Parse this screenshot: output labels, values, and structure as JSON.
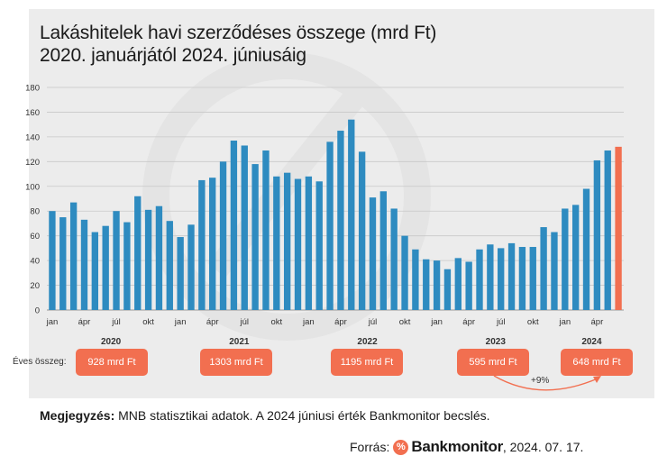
{
  "title_line1": "Lakáshitelek havi szerződéses összege (mrd Ft)",
  "title_line2": "2020. januárjától 2024. júniusáig",
  "chart_data": {
    "type": "bar",
    "title": "Lakáshitelek havi szerződéses összege (mrd Ft) 2020. januárjától 2024. júniusáig",
    "ylim": [
      0,
      180
    ],
    "yticks": [
      0,
      20,
      40,
      60,
      80,
      100,
      120,
      140,
      160,
      180
    ],
    "grid": true,
    "categories": [
      "2020-01",
      "2020-02",
      "2020-03",
      "2020-04",
      "2020-05",
      "2020-06",
      "2020-07",
      "2020-08",
      "2020-09",
      "2020-10",
      "2020-11",
      "2020-12",
      "2021-01",
      "2021-02",
      "2021-03",
      "2021-04",
      "2021-05",
      "2021-06",
      "2021-07",
      "2021-08",
      "2021-09",
      "2021-10",
      "2021-11",
      "2021-12",
      "2022-01",
      "2022-02",
      "2022-03",
      "2022-04",
      "2022-05",
      "2022-06",
      "2022-07",
      "2022-08",
      "2022-09",
      "2022-10",
      "2022-11",
      "2022-12",
      "2023-01",
      "2023-02",
      "2023-03",
      "2023-04",
      "2023-05",
      "2023-06",
      "2023-07",
      "2023-08",
      "2023-09",
      "2023-10",
      "2023-11",
      "2023-12",
      "2024-01",
      "2024-02",
      "2024-03",
      "2024-04",
      "2024-05",
      "2024-06"
    ],
    "values": [
      80,
      75,
      87,
      73,
      63,
      68,
      80,
      71,
      92,
      81,
      84,
      72,
      59,
      69,
      105,
      107,
      120,
      137,
      133,
      118,
      129,
      108,
      111,
      106,
      108,
      104,
      136,
      145,
      154,
      128,
      91,
      96,
      82,
      60,
      49,
      41,
      40,
      33,
      42,
      39,
      49,
      53,
      50,
      54,
      51,
      51,
      67,
      63,
      82,
      85,
      98,
      121,
      129,
      132
    ],
    "estimated_index": 53,
    "month_tick_labels": [
      "jan",
      "ápr",
      "júl",
      "okt"
    ],
    "year_labels": [
      "2020",
      "2021",
      "2022",
      "2023",
      "2024"
    ],
    "colors": {
      "bar": "#2e8bc0",
      "estimate": "#f26f50",
      "badge": "#f26f50",
      "grid": "#c8c8c8"
    }
  },
  "annual": {
    "label": "Éves összeg:",
    "values": [
      "928 mrd Ft",
      "1303 mrd Ft",
      "1195 mrd Ft",
      "595 mrd Ft",
      "648 mrd Ft"
    ],
    "growth": "+9%"
  },
  "note": {
    "label": "Megjegyzés:",
    "text": " MNB statisztikai adatok. A 2024 júniusi érték Bankmonitor becslés."
  },
  "source": {
    "label": "Forrás:",
    "logo_symbol": "%",
    "brand": "Bankmonitor",
    "date": ", 2024. 07. 17."
  }
}
